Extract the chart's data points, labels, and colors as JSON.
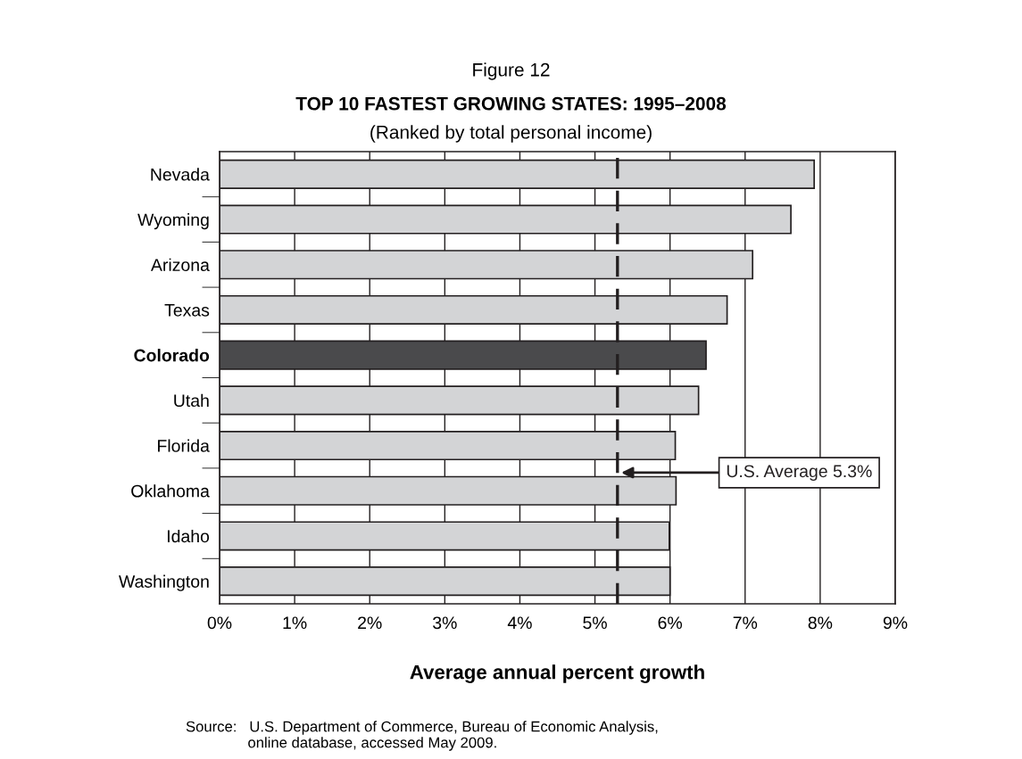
{
  "chart_data": {
    "type": "bar",
    "orientation": "horizontal",
    "title": "TOP 10 FASTEST GROWING STATES: 1995–2008",
    "subtitle": "(Ranked by total personal income)",
    "xlabel": "Average annual percent growth",
    "categories": [
      "Nevada",
      "Wyoming",
      "Arizona",
      "Texas",
      "Colorado",
      "Utah",
      "Florida",
      "Oklahoma",
      "Idaho",
      "Washington"
    ],
    "values": [
      7.92,
      7.61,
      7.1,
      6.76,
      6.48,
      6.38,
      6.07,
      6.08,
      5.99,
      6.0
    ],
    "colors": [
      "#d3d4d6",
      "#d3d4d6",
      "#d3d4d6",
      "#d3d4d6",
      "#4a4a4c",
      "#d3d4d6",
      "#d3d4d6",
      "#d3d4d6",
      "#d3d4d6",
      "#d3d4d6"
    ],
    "xlim": [
      0,
      9
    ],
    "xticks": [
      {
        "value": 0,
        "label": "0%"
      },
      {
        "value": 1,
        "label": "1%"
      },
      {
        "value": 2,
        "label": "2%"
      },
      {
        "value": 3,
        "label": "3%"
      },
      {
        "value": 4,
        "label": "4%"
      },
      {
        "value": 5,
        "label": "5%"
      },
      {
        "value": 6,
        "label": "6%"
      },
      {
        "value": 7,
        "label": "7%"
      },
      {
        "value": 8,
        "label": "8%"
      },
      {
        "value": 9,
        "label": "9%"
      }
    ],
    "grid": "x",
    "ref_lines": [
      {
        "axis": "x",
        "value": 5.3,
        "label": "U.S. Average 5.3%",
        "color": "#231f20",
        "line_style": "dashed"
      }
    ],
    "annotations": [
      "Figure 12",
      "Source:   U.S. Department of Commerce, Bureau of Economic Analysis,\n               online database, accessed May 2009."
    ]
  }
}
